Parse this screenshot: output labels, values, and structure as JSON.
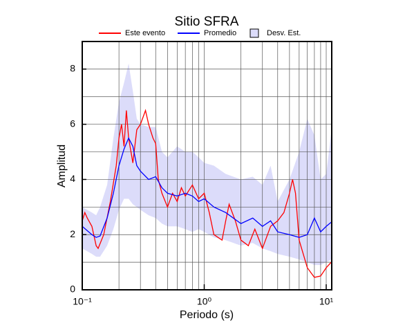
{
  "chart_data": {
    "type": "line",
    "title": "Sitio SFRA",
    "xlabel": "Periodo (s)",
    "ylabel": "Amplitud",
    "xscale": "log",
    "xlim": [
      0.1,
      11.1
    ],
    "ylim": [
      0,
      9
    ],
    "xticks": [
      {
        "value": 0.1,
        "label": "10⁻¹"
      },
      {
        "value": 1,
        "label": "10⁰"
      },
      {
        "value": 10,
        "label": "10¹"
      }
    ],
    "yticks": [
      0,
      2,
      4,
      6,
      8
    ],
    "xgrid": [
      0.2,
      0.3,
      0.4,
      0.5,
      0.6,
      0.7,
      0.8,
      0.9,
      1,
      2,
      3,
      4,
      5,
      6,
      7,
      8,
      9,
      10
    ],
    "ygrid": [
      1,
      2,
      3,
      4,
      5,
      6,
      7,
      8
    ],
    "legend": "top",
    "series": [
      {
        "name": "Este evento",
        "color": "#ff0000",
        "x": [
          0.1,
          0.105,
          0.11,
          0.12,
          0.13,
          0.135,
          0.15,
          0.17,
          0.19,
          0.2,
          0.21,
          0.22,
          0.23,
          0.24,
          0.26,
          0.28,
          0.3,
          0.33,
          0.35,
          0.38,
          0.4,
          0.42,
          0.45,
          0.5,
          0.55,
          0.6,
          0.65,
          0.7,
          0.8,
          0.9,
          1.0,
          1.1,
          1.2,
          1.4,
          1.5,
          1.6,
          1.8,
          2,
          2.3,
          2.6,
          3,
          3.5,
          4,
          4.5,
          5,
          5.3,
          5.6,
          6,
          7,
          8,
          9,
          10,
          11
        ],
        "values": [
          2.5,
          2.8,
          2.6,
          2.3,
          1.6,
          1.5,
          2.0,
          3.2,
          4.5,
          5.5,
          6.0,
          5.2,
          6.5,
          5.5,
          4.6,
          5.8,
          6.0,
          6.5,
          6.0,
          5.5,
          5.3,
          4.0,
          3.5,
          3.0,
          3.5,
          3.2,
          3.7,
          3.4,
          3.8,
          3.3,
          3.5,
          2.8,
          2.0,
          1.8,
          2.5,
          3.1,
          2.5,
          1.8,
          1.6,
          2.2,
          1.5,
          2.3,
          2.5,
          2.8,
          3.5,
          4.0,
          3.5,
          1.8,
          0.8,
          0.45,
          0.5,
          0.8,
          1.0
        ]
      },
      {
        "name": "Promedio",
        "color": "#0000ff",
        "x": [
          0.1,
          0.12,
          0.13,
          0.14,
          0.16,
          0.18,
          0.2,
          0.22,
          0.24,
          0.26,
          0.28,
          0.3,
          0.35,
          0.4,
          0.45,
          0.5,
          0.6,
          0.7,
          0.8,
          0.9,
          1.0,
          1.2,
          1.5,
          2,
          2.5,
          3,
          3.5,
          4,
          5,
          6,
          7,
          8,
          9,
          10,
          11
        ],
        "values": [
          2.3,
          2.0,
          1.9,
          1.95,
          2.6,
          3.5,
          4.5,
          5.1,
          5.5,
          5.2,
          4.5,
          4.3,
          4.0,
          4.1,
          3.7,
          3.5,
          3.4,
          3.5,
          3.4,
          3.2,
          3.3,
          3.0,
          2.8,
          2.4,
          2.6,
          2.3,
          2.5,
          2.1,
          2.0,
          1.9,
          2.0,
          2.6,
          2.1,
          2.3,
          2.45
        ]
      }
    ],
    "band": {
      "name": "Desv. Est.",
      "color": "#dcdcfa",
      "x": [
        0.1,
        0.12,
        0.13,
        0.14,
        0.16,
        0.18,
        0.2,
        0.22,
        0.24,
        0.26,
        0.28,
        0.3,
        0.35,
        0.4,
        0.45,
        0.5,
        0.6,
        0.7,
        0.8,
        0.9,
        1.0,
        1.2,
        1.5,
        2,
        2.5,
        3,
        3.5,
        4,
        5,
        6,
        7,
        8,
        9,
        10,
        11
      ],
      "upper": [
        3.0,
        2.8,
        2.7,
        3.0,
        3.8,
        5.5,
        6.8,
        7.5,
        8.2,
        7.2,
        6.2,
        6.0,
        5.9,
        5.9,
        5.0,
        4.8,
        5.2,
        5.0,
        5.0,
        4.8,
        4.6,
        4.5,
        4.2,
        4.0,
        4.1,
        3.8,
        4.5,
        3.2,
        4.0,
        5.0,
        6.2,
        5.6,
        4.0,
        4.2,
        5.7
      ],
      "lower": [
        1.5,
        1.3,
        1.2,
        1.2,
        1.6,
        2.2,
        2.9,
        3.3,
        3.3,
        3.1,
        3.0,
        2.9,
        2.7,
        2.6,
        2.4,
        2.3,
        2.3,
        2.2,
        2.1,
        2.2,
        2.1,
        1.9,
        1.8,
        1.6,
        1.7,
        1.5,
        1.4,
        1.3,
        1.2,
        1.1,
        1.0,
        0.9,
        0.9,
        1.0,
        1.1
      ]
    }
  }
}
